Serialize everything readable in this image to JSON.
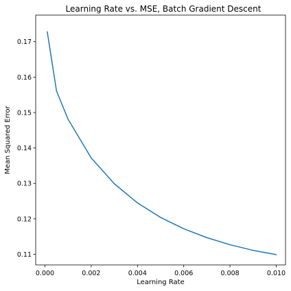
{
  "chart_data": {
    "type": "line",
    "title": "Learning Rate vs. MSE, Batch Gradient Descent",
    "xlabel": "Learning Rate",
    "ylabel": "Mean Squared Error",
    "xlim": [
      -0.0004,
      0.0104
    ],
    "ylim": [
      0.107,
      0.1775
    ],
    "grid": false,
    "xticks": [
      0.0,
      0.002,
      0.004,
      0.006,
      0.008,
      0.01
    ],
    "xtick_labels": [
      "0.000",
      "0.002",
      "0.004",
      "0.006",
      "0.008",
      "0.010"
    ],
    "yticks": [
      0.11,
      0.12,
      0.13,
      0.14,
      0.15,
      0.16,
      0.17
    ],
    "ytick_labels": [
      "0.11",
      "0.12",
      "0.13",
      "0.14",
      "0.15",
      "0.16",
      "0.17"
    ],
    "series": [
      {
        "name": "MSE",
        "color": "#1f77b4",
        "x": [
          0.0001,
          0.0005,
          0.001,
          0.002,
          0.003,
          0.004,
          0.005,
          0.006,
          0.007,
          0.008,
          0.009,
          0.01
        ],
        "y": [
          0.1728,
          0.1561,
          0.1481,
          0.1372,
          0.1299,
          0.1245,
          0.1204,
          0.1172,
          0.1147,
          0.1127,
          0.1111,
          0.1099
        ]
      }
    ]
  }
}
